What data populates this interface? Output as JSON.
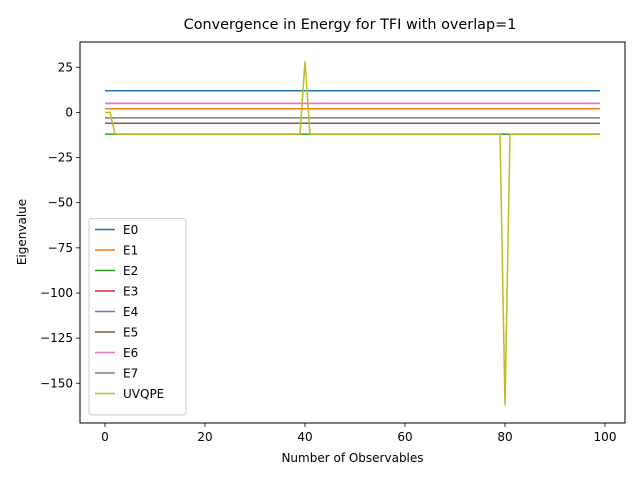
{
  "chart_data": {
    "type": "line",
    "title": "Convergence in Energy for TFI with overlap=1",
    "xlabel": "Number of Observables",
    "ylabel": "Eigenvalue",
    "xlim": [
      -5,
      104
    ],
    "ylim": [
      -172,
      39
    ],
    "xticks": [
      0,
      20,
      40,
      60,
      80,
      100
    ],
    "yticks": [
      25,
      0,
      -25,
      -50,
      -75,
      -100,
      -125,
      -150
    ],
    "ytick_labels": [
      "25",
      "0",
      "−25",
      "−50",
      "−75",
      "−100",
      "−125",
      "−150"
    ],
    "grid": false,
    "legend_position": "lower-left",
    "series": [
      {
        "name": "E0",
        "color": "#1f77b4",
        "x": [
          0,
          99
        ],
        "y": [
          12,
          12
        ]
      },
      {
        "name": "E1",
        "color": "#ff7f0e",
        "x": [
          0,
          99
        ],
        "y": [
          2,
          2
        ]
      },
      {
        "name": "E2",
        "color": "#2ca02c",
        "x": [
          0,
          99
        ],
        "y": [
          -12,
          -12
        ]
      },
      {
        "name": "E3",
        "color": "#d62728",
        "x": [
          0,
          99
        ],
        "y": [
          -6,
          -6
        ]
      },
      {
        "name": "E4",
        "color": "#9467bd",
        "x": [
          0,
          99
        ],
        "y": [
          5,
          5
        ]
      },
      {
        "name": "E5",
        "color": "#8c564b",
        "x": [
          0,
          99
        ],
        "y": [
          -6,
          -6
        ]
      },
      {
        "name": "E6",
        "color": "#e377c2",
        "x": [
          0,
          99
        ],
        "y": [
          5,
          5
        ]
      },
      {
        "name": "E7",
        "color": "#7f7f7f",
        "x": [
          0,
          99
        ],
        "y": [
          -3,
          -3
        ]
      },
      {
        "name": "UVQPE",
        "color": "#bcbd22",
        "x": [
          0,
          1,
          2,
          39,
          40,
          41,
          79,
          80,
          81,
          99
        ],
        "y": [
          0,
          0,
          -12,
          -12,
          28,
          -12,
          -12,
          -162,
          -12,
          -12
        ]
      }
    ]
  }
}
